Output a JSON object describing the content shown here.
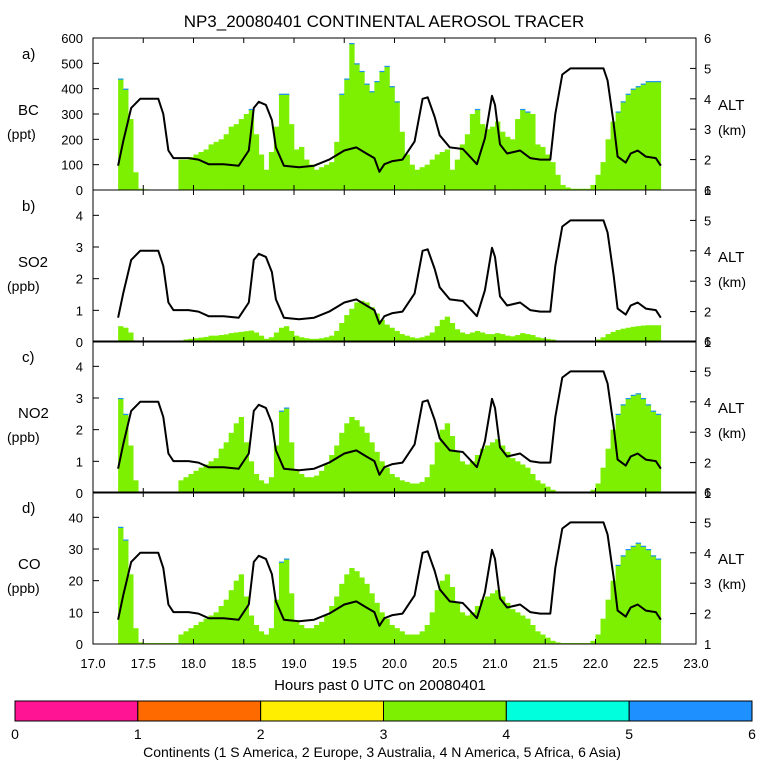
{
  "chart_data": {
    "type": "bar+line",
    "title": "NP3_20080401 CONTINENTAL AEROSOL TRACER",
    "xlabel": "Hours past 0 UTC on 20080401",
    "x_ticks": [
      "17.0",
      "17.5",
      "18.0",
      "18.5",
      "19.0",
      "19.5",
      "20.0",
      "20.5",
      "21.0",
      "21.5",
      "22.0",
      "22.5",
      "23.0"
    ],
    "xlim": [
      17.0,
      23.0
    ],
    "x_start": 17.25,
    "x_end": 22.65,
    "bin_width": 0.05,
    "colors": {
      "s_america": "#ff1493",
      "europe": "#ff6a00",
      "australia": "#ffee00",
      "n_america": "#7cf000",
      "africa": "#00ffdd",
      "asia": "#1e90ff",
      "altitude_line": "#000000"
    },
    "altitude": {
      "label": "ALT",
      "unit": "(km)",
      "ylim": [
        1,
        6
      ],
      "ticks": [
        "1",
        "2",
        "3",
        "4",
        "5",
        "6"
      ],
      "points": [
        [
          17.25,
          1.8
        ],
        [
          17.3,
          2.6
        ],
        [
          17.38,
          3.7
        ],
        [
          17.47,
          4.0
        ],
        [
          17.65,
          4.0
        ],
        [
          17.7,
          3.5
        ],
        [
          17.75,
          2.3
        ],
        [
          17.8,
          2.05
        ],
        [
          17.95,
          2.05
        ],
        [
          18.05,
          2.0
        ],
        [
          18.15,
          1.85
        ],
        [
          18.3,
          1.85
        ],
        [
          18.45,
          1.8
        ],
        [
          18.55,
          2.3
        ],
        [
          18.6,
          3.7
        ],
        [
          18.65,
          3.9
        ],
        [
          18.72,
          3.8
        ],
        [
          18.78,
          3.3
        ],
        [
          18.82,
          2.4
        ],
        [
          18.9,
          1.8
        ],
        [
          19.05,
          1.75
        ],
        [
          19.2,
          1.8
        ],
        [
          19.35,
          2.0
        ],
        [
          19.5,
          2.3
        ],
        [
          19.62,
          2.4
        ],
        [
          19.72,
          2.2
        ],
        [
          19.8,
          2.05
        ],
        [
          19.85,
          1.6
        ],
        [
          19.9,
          1.85
        ],
        [
          19.98,
          1.95
        ],
        [
          20.08,
          2.0
        ],
        [
          20.2,
          2.6
        ],
        [
          20.28,
          4.0
        ],
        [
          20.33,
          4.05
        ],
        [
          20.4,
          3.4
        ],
        [
          20.45,
          2.8
        ],
        [
          20.55,
          2.4
        ],
        [
          20.68,
          2.35
        ],
        [
          20.75,
          2.1
        ],
        [
          20.82,
          1.85
        ],
        [
          20.9,
          2.7
        ],
        [
          20.97,
          4.1
        ],
        [
          21.0,
          3.8
        ],
        [
          21.05,
          2.5
        ],
        [
          21.12,
          2.2
        ],
        [
          21.25,
          2.3
        ],
        [
          21.35,
          2.05
        ],
        [
          21.45,
          2.0
        ],
        [
          21.55,
          2.0
        ],
        [
          21.6,
          3.5
        ],
        [
          21.67,
          4.8
        ],
        [
          21.75,
          5.0
        ],
        [
          22.08,
          5.0
        ],
        [
          22.12,
          4.6
        ],
        [
          22.18,
          3.2
        ],
        [
          22.22,
          2.1
        ],
        [
          22.3,
          1.9
        ],
        [
          22.35,
          2.2
        ],
        [
          22.42,
          2.3
        ],
        [
          22.5,
          2.1
        ],
        [
          22.6,
          2.05
        ],
        [
          22.65,
          1.8
        ]
      ]
    },
    "panels": [
      {
        "id": "a",
        "tag": "a)",
        "species": "BC",
        "unit": "(ppt)",
        "ylim": [
          0,
          600
        ],
        "yticks": [
          "0",
          "100",
          "200",
          "300",
          "400",
          "500",
          "600"
        ],
        "values": [
          440,
          400,
          280,
          70,
          5,
          3,
          2,
          2,
          2,
          2,
          2,
          2,
          120,
          120,
          130,
          140,
          150,
          160,
          180,
          190,
          200,
          220,
          250,
          260,
          280,
          300,
          320,
          220,
          140,
          80,
          150,
          250,
          380,
          380,
          260,
          160,
          170,
          120,
          100,
          80,
          90,
          100,
          110,
          190,
          380,
          440,
          580,
          500,
          470,
          420,
          390,
          430,
          470,
          490,
          410,
          350,
          230,
          140,
          100,
          80,
          90,
          100,
          120,
          140,
          150,
          160,
          80,
          120,
          180,
          220,
          300,
          320,
          260,
          240,
          250,
          270,
          230,
          210,
          200,
          280,
          320,
          310,
          300,
          180,
          170,
          140,
          110,
          60,
          20,
          10,
          5,
          5,
          5,
          5,
          20,
          60,
          110,
          200,
          270,
          310,
          350,
          380,
          400,
          410,
          420,
          430,
          430,
          430
        ]
      },
      {
        "id": "b",
        "tag": "b)",
        "species": "SO2",
        "unit": "(ppb)",
        "ylim": [
          0,
          4.8
        ],
        "yticks": [
          "0",
          "1",
          "2",
          "3",
          "4"
        ],
        "values": [
          0.5,
          0.45,
          0.3,
          0.05,
          0.01,
          0.01,
          0.01,
          0.01,
          0.01,
          0.01,
          0.01,
          0.01,
          0.05,
          0.08,
          0.1,
          0.12,
          0.14,
          0.16,
          0.2,
          0.2,
          0.22,
          0.24,
          0.28,
          0.3,
          0.32,
          0.34,
          0.36,
          0.3,
          0.2,
          0.1,
          0.15,
          0.3,
          0.45,
          0.5,
          0.35,
          0.2,
          0.15,
          0.12,
          0.1,
          0.1,
          0.12,
          0.15,
          0.2,
          0.35,
          0.6,
          0.85,
          1.05,
          1.25,
          1.3,
          1.25,
          1.1,
          0.9,
          0.7,
          0.55,
          0.45,
          0.35,
          0.25,
          0.2,
          0.15,
          0.12,
          0.15,
          0.2,
          0.3,
          0.5,
          0.7,
          0.8,
          0.6,
          0.4,
          0.3,
          0.25,
          0.3,
          0.35,
          0.3,
          0.25,
          0.25,
          0.28,
          0.25,
          0.2,
          0.18,
          0.22,
          0.28,
          0.25,
          0.22,
          0.15,
          0.12,
          0.1,
          0.08,
          0.05,
          0.02,
          0.01,
          0.01,
          0.01,
          0.01,
          0.01,
          0.03,
          0.08,
          0.15,
          0.25,
          0.32,
          0.38,
          0.42,
          0.45,
          0.48,
          0.5,
          0.52,
          0.53,
          0.53,
          0.53
        ]
      },
      {
        "id": "c",
        "tag": "c)",
        "species": "NO2",
        "unit": "(ppb)",
        "ylim": [
          0,
          4.8
        ],
        "yticks": [
          "0",
          "1",
          "2",
          "3",
          "4"
        ],
        "values": [
          3.0,
          2.5,
          1.5,
          0.4,
          0.03,
          0.02,
          0.02,
          0.02,
          0.02,
          0.02,
          0.02,
          0.02,
          0.4,
          0.5,
          0.6,
          0.7,
          0.8,
          0.9,
          1.0,
          1.1,
          1.4,
          1.6,
          1.9,
          2.2,
          2.4,
          1.6,
          1.0,
          0.6,
          0.4,
          0.3,
          0.5,
          1.5,
          2.6,
          2.7,
          1.6,
          0.7,
          0.6,
          0.5,
          0.5,
          0.55,
          0.7,
          0.9,
          1.2,
          1.5,
          1.9,
          2.2,
          2.4,
          2.3,
          2.1,
          1.9,
          1.6,
          1.3,
          1.0,
          0.8,
          0.6,
          0.5,
          0.4,
          0.35,
          0.3,
          0.3,
          0.35,
          0.5,
          0.9,
          1.6,
          2.0,
          2.2,
          1.8,
          1.3,
          1.0,
          0.9,
          1.0,
          1.2,
          1.4,
          1.5,
          1.6,
          1.7,
          1.5,
          1.3,
          1.1,
          1.0,
          0.9,
          0.8,
          0.6,
          0.4,
          0.3,
          0.2,
          0.1,
          0.05,
          0.02,
          0.02,
          0.02,
          0.02,
          0.02,
          0.02,
          0.1,
          0.3,
          0.8,
          1.4,
          2.0,
          2.5,
          2.8,
          3.0,
          3.1,
          3.15,
          3.0,
          2.8,
          2.6,
          2.5
        ]
      },
      {
        "id": "d",
        "tag": "d)",
        "species": "CO",
        "unit": "(ppb)",
        "ylim": [
          0,
          48
        ],
        "yticks": [
          "0",
          "10",
          "20",
          "30",
          "40"
        ],
        "values": [
          37,
          33,
          22,
          5,
          0.5,
          0.3,
          0.3,
          0.3,
          0.3,
          0.3,
          0.3,
          0.3,
          3,
          4,
          5,
          6,
          7,
          8,
          9,
          10,
          12,
          14,
          17,
          20,
          22,
          15,
          9,
          6,
          4,
          3,
          5,
          14,
          26,
          27,
          16,
          7,
          6,
          5,
          5,
          6,
          7,
          9,
          12,
          15,
          19,
          22,
          24,
          23,
          21,
          19,
          16,
          13,
          10,
          8,
          6,
          5,
          4,
          3,
          3,
          3,
          4,
          6,
          10,
          17,
          20,
          22,
          18,
          13,
          10,
          9,
          10,
          12,
          14,
          15,
          16,
          17,
          15,
          13,
          11,
          10,
          9,
          8,
          6,
          4,
          3,
          2,
          1,
          0.5,
          0.3,
          0.3,
          0.3,
          0.3,
          0.3,
          0.3,
          1,
          3,
          8,
          14,
          20,
          25,
          28,
          30,
          31,
          32,
          31,
          30,
          28,
          27
        ]
      }
    ],
    "colorbar": {
      "ticks": [
        "0",
        "1",
        "2",
        "3",
        "4",
        "5",
        "6"
      ],
      "caption": "Continents (1 S America, 2 Europe, 3 Australia, 4 N America, 5 Africa, 6 Asia)"
    }
  }
}
